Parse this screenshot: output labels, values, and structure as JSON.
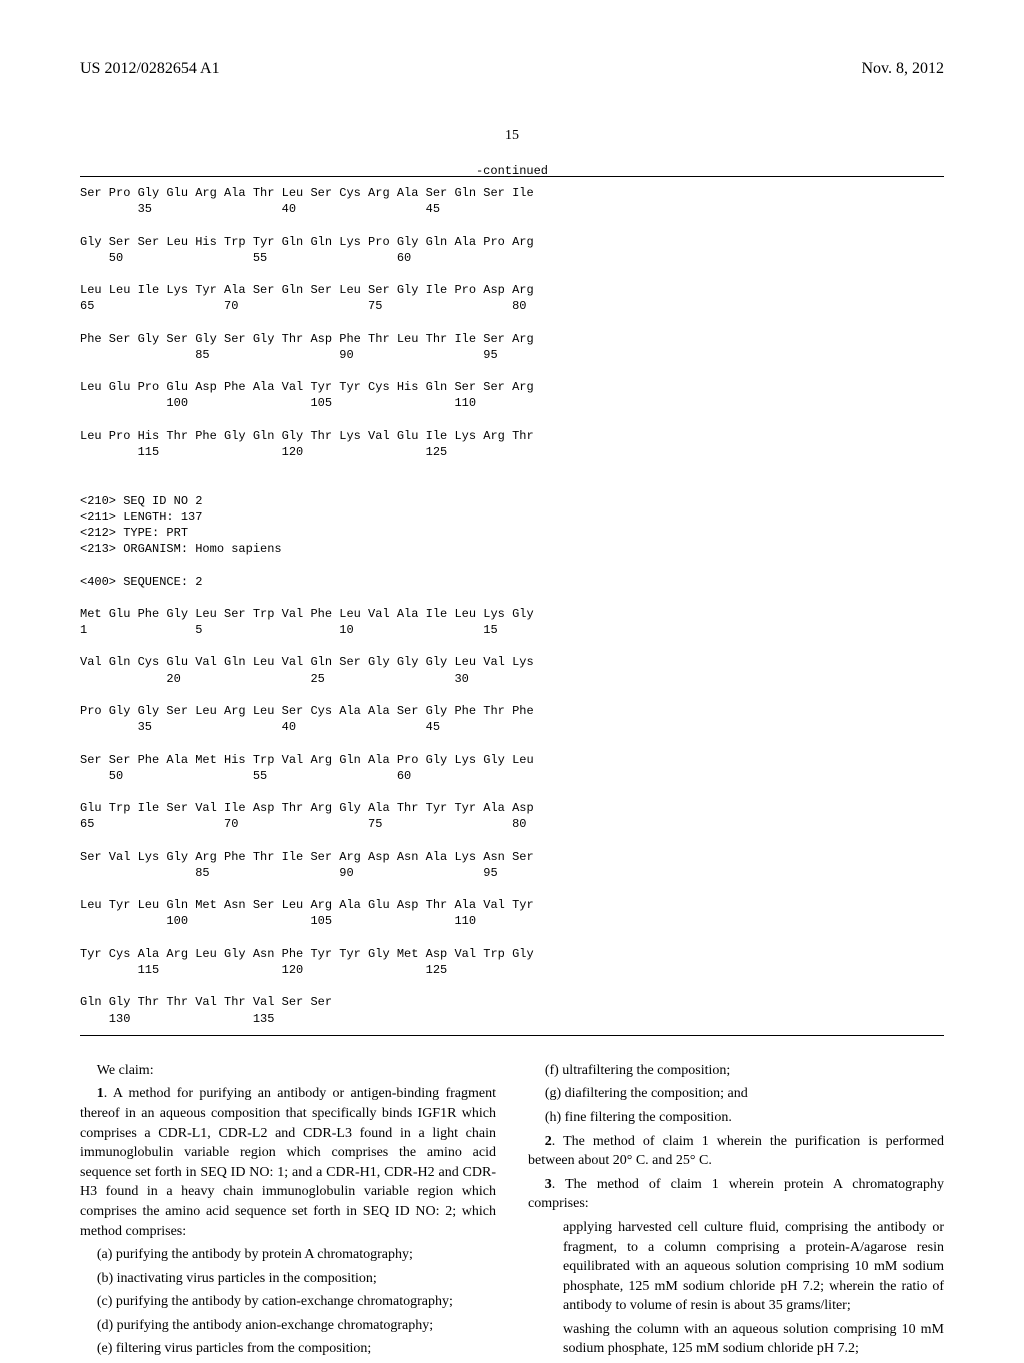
{
  "header": {
    "pub_number": "US 2012/0282654 A1",
    "date": "Nov. 8, 2012"
  },
  "page_number": "15",
  "continued_label": "-continued",
  "sequence_block": "Ser Pro Gly Glu Arg Ala Thr Leu Ser Cys Arg Ala Ser Gln Ser Ile\n        35                  40                  45\n\nGly Ser Ser Leu His Trp Tyr Gln Gln Lys Pro Gly Gln Ala Pro Arg\n    50                  55                  60\n\nLeu Leu Ile Lys Tyr Ala Ser Gln Ser Leu Ser Gly Ile Pro Asp Arg\n65                  70                  75                  80\n\nPhe Ser Gly Ser Gly Ser Gly Thr Asp Phe Thr Leu Thr Ile Ser Arg\n                85                  90                  95\n\nLeu Glu Pro Glu Asp Phe Ala Val Tyr Tyr Cys His Gln Ser Ser Arg\n            100                 105                 110\n\nLeu Pro His Thr Phe Gly Gln Gly Thr Lys Val Glu Ile Lys Arg Thr\n        115                 120                 125\n\n\n<210> SEQ ID NO 2\n<211> LENGTH: 137\n<212> TYPE: PRT\n<213> ORGANISM: Homo sapiens\n\n<400> SEQUENCE: 2\n\nMet Glu Phe Gly Leu Ser Trp Val Phe Leu Val Ala Ile Leu Lys Gly\n1               5                   10                  15\n\nVal Gln Cys Glu Val Gln Leu Val Gln Ser Gly Gly Gly Leu Val Lys\n            20                  25                  30\n\nPro Gly Gly Ser Leu Arg Leu Ser Cys Ala Ala Ser Gly Phe Thr Phe\n        35                  40                  45\n\nSer Ser Phe Ala Met His Trp Val Arg Gln Ala Pro Gly Lys Gly Leu\n    50                  55                  60\n\nGlu Trp Ile Ser Val Ile Asp Thr Arg Gly Ala Thr Tyr Tyr Ala Asp\n65                  70                  75                  80\n\nSer Val Lys Gly Arg Phe Thr Ile Ser Arg Asp Asn Ala Lys Asn Ser\n                85                  90                  95\n\nLeu Tyr Leu Gln Met Asn Ser Leu Arg Ala Glu Asp Thr Ala Val Tyr\n            100                 105                 110\n\nTyr Cys Ala Arg Leu Gly Asn Phe Tyr Tyr Gly Met Asp Val Trp Gly\n        115                 120                 125\n\nGln Gly Thr Thr Val Thr Val Ser Ser\n    130                 135",
  "claims": {
    "we_claim": "We claim:",
    "c1_lead": "1",
    "c1_body": ". A method for purifying an antibody or antigen-binding fragment thereof in an aqueous composition that specifically binds IGF1R which comprises a CDR-L1, CDR-L2 and CDR-L3 found in a light chain immunoglobulin variable region which comprises the amino acid sequence set forth in SEQ ID NO: 1; and a CDR-H1, CDR-H2 and CDR-H3 found in a heavy chain immunoglobulin variable region which comprises the amino acid sequence set forth in SEQ ID NO: 2; which method comprises:",
    "c1a": "(a) purifying the antibody by protein A chromatography;",
    "c1b": "(b) inactivating virus particles in the composition;",
    "c1c": "(c) purifying the antibody by cation-exchange chromatography;",
    "c1d": "(d) purifying the antibody anion-exchange chromatography;",
    "c1e": "(e) filtering virus particles from the composition;",
    "c1f": "(f) ultrafiltering the composition;",
    "c1g": "(g) diafiltering the composition; and",
    "c1h": "(h) fine filtering the composition.",
    "c2_lead": "2",
    "c2_body": ". The method of claim 1 wherein the purification is performed between about 20° C. and 25° C.",
    "c3_lead": "3",
    "c3_body": ". The method of claim 1 wherein protein A chromatography comprises:",
    "c3a": "applying harvested cell culture fluid, comprising the antibody or fragment, to a column comprising a protein-A/agarose resin equilibrated with an aqueous solution comprising 10 mM sodium phosphate, 125 mM sodium chloride pH 7.2; wherein the ratio of antibody to volume of resin is about 35 grams/liter;",
    "c3b": "washing the column with an aqueous solution comprising 10 mM sodium phosphate, 125 mM sodium chloride pH 7.2;"
  }
}
